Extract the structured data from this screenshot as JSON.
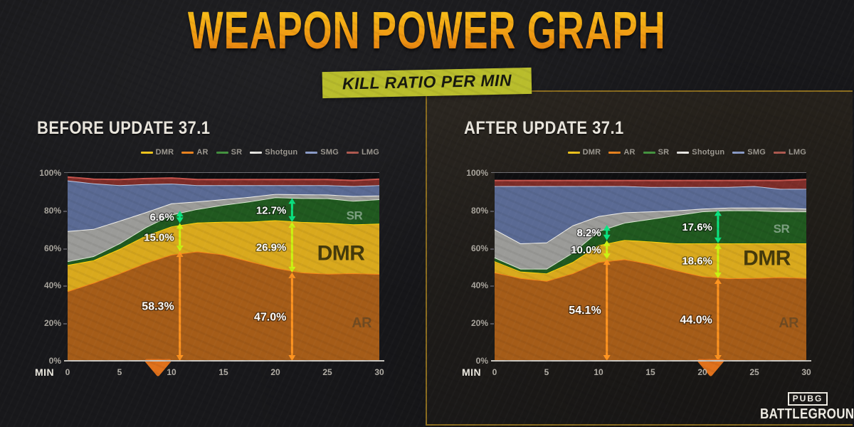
{
  "title": "WEAPON POWER GRAPH",
  "subtitle_badge": "KILL RATIO PER MIN",
  "brand": {
    "logo_top": "PUBG",
    "logo_bottom": "BATTLEGROUNDS"
  },
  "legend": [
    "DMR",
    "AR",
    "SR",
    "Shotgun",
    "SMG",
    "LMG"
  ],
  "colors": {
    "title_gradient_top": "#f9c41a",
    "title_gradient_bottom": "#e1770e",
    "badge_bg": "#b9bd2c",
    "badge_text": "#17180f",
    "frame_border": "#8a6c1f",
    "axis_marker": "#e0711b",
    "annotation": {
      "sr": "#0ae481",
      "dmr": "#cbf312",
      "ar": "#ff9420"
    },
    "series": {
      "AR": {
        "fill": "#a55c18",
        "edge": "#f5821a",
        "legend": "#e8821f"
      },
      "DMR": {
        "fill": "#d9a91d",
        "edge": "#ffd60a",
        "legend": "#eec31d"
      },
      "SR": {
        "fill": "#20591f",
        "edge": "#d9ead2",
        "legend": "#44923f"
      },
      "Shotgun": {
        "fill": "#9b9b98",
        "edge": "#f1f0ec",
        "legend": "#e8e7e3"
      },
      "SMG": {
        "fill": "#5a6a94",
        "edge": "#bac6e2",
        "legend": "#8b9cc8"
      },
      "LMG": {
        "fill": "#7e2d29",
        "edge": "#c9554e",
        "legend": "#b05a50"
      }
    }
  },
  "chart_data": [
    {
      "type": "area",
      "stacked": true,
      "title": "BEFORE UPDATE 37.1",
      "xlabel": "MIN",
      "unit": "%",
      "ylim": [
        0,
        100
      ],
      "x_ticks": [
        0,
        5,
        10,
        15,
        20,
        25,
        30
      ],
      "y_ticks": [
        "0%",
        "20%",
        "40%",
        "60%",
        "80%",
        "100%"
      ],
      "x": [
        0,
        2.5,
        5,
        7.5,
        10,
        12.5,
        15,
        17.5,
        20,
        22.5,
        25,
        27.5,
        30
      ],
      "series": [
        {
          "name": "AR",
          "values": [
            37,
            41.5,
            46.5,
            52,
            56.5,
            58.2,
            56.5,
            53,
            49.5,
            47.0,
            46.3,
            46.6,
            46.2
          ]
        },
        {
          "name": "DMR",
          "values": [
            14,
            12,
            13,
            14.5,
            15,
            15.4,
            17.5,
            21,
            25.3,
            26.9,
            27.2,
            26.0,
            26.8
          ]
        },
        {
          "name": "SR",
          "values": [
            2,
            2.2,
            3,
            4.5,
            6.3,
            7.2,
            9,
            10.8,
            12.2,
            12.7,
            13,
            12.5,
            13
          ]
        },
        {
          "name": "Shotgun",
          "values": [
            16,
            14.5,
            12,
            8,
            6,
            4,
            3,
            2.4,
            1.8,
            2,
            2,
            2.6,
            2
          ]
        },
        {
          "name": "SMG",
          "values": [
            27,
            24.2,
            19,
            15,
            10.5,
            8.7,
            7.5,
            6.3,
            4.7,
            4.9,
            5,
            5.3,
            5.5
          ]
        },
        {
          "name": "LMG",
          "values": [
            1.8,
            2.3,
            3,
            3,
            3,
            3,
            3,
            3,
            3,
            3,
            3,
            3,
            3.2
          ]
        }
      ],
      "annotations": [
        {
          "text": "6.6%",
          "kind": "sr",
          "x": 10.8,
          "y_from": 73.3,
          "y_to": 79.9
        },
        {
          "text": "15.0%",
          "kind": "dmr",
          "x": 10.8,
          "y_from": 58.3,
          "y_to": 73.3
        },
        {
          "text": "58.3%",
          "kind": "ar",
          "x": 10.8,
          "y_from": 0,
          "y_to": 58.3
        },
        {
          "text": "12.7%",
          "kind": "sr",
          "x": 21.6,
          "y_from": 73.9,
          "y_to": 86.6
        },
        {
          "text": "26.9%",
          "kind": "dmr",
          "x": 21.6,
          "y_from": 47.0,
          "y_to": 73.9
        },
        {
          "text": "47.0%",
          "kind": "ar",
          "x": 21.6,
          "y_from": 0,
          "y_to": 47.0
        }
      ],
      "area_labels": [
        {
          "text": "SR",
          "kind": "sr",
          "x": 27.6,
          "y": 77.5
        },
        {
          "text": "DMR",
          "kind": "dmr",
          "x": 26.3,
          "y": 57.5
        },
        {
          "text": "AR",
          "kind": "ar",
          "x": 28.3,
          "y": 20.5
        }
      ],
      "axis_marker_min": 8.7
    },
    {
      "type": "area",
      "stacked": true,
      "title": "AFTER UPDATE 37.1",
      "xlabel": "MIN",
      "unit": "%",
      "ylim": [
        0,
        100
      ],
      "x_ticks": [
        0,
        5,
        10,
        15,
        20,
        25,
        30
      ],
      "y_ticks": [
        "0%",
        "20%",
        "40%",
        "60%",
        "80%",
        "100%"
      ],
      "x": [
        0,
        2.5,
        5,
        7.5,
        10,
        12.5,
        15,
        17.5,
        20,
        22.5,
        25,
        27.5,
        30
      ],
      "series": [
        {
          "name": "AR",
          "values": [
            47,
            44,
            42.5,
            46.5,
            52.5,
            54.0,
            51.5,
            48,
            45,
            43.9,
            44.0,
            44.5,
            44.0
          ]
        },
        {
          "name": "DMR",
          "values": [
            6,
            3.5,
            4,
            6,
            9,
            10.3,
            12,
            14.5,
            17.5,
            18.6,
            18.5,
            18,
            18.5
          ]
        },
        {
          "name": "SR",
          "values": [
            2,
            1.5,
            2.5,
            5,
            7.5,
            9.2,
            12,
            15,
            17,
            17.6,
            17.5,
            17,
            17
          ]
        },
        {
          "name": "Shotgun",
          "values": [
            15,
            13.5,
            14,
            14.5,
            8,
            5.5,
            4,
            2.5,
            1.5,
            1.4,
            1.5,
            2,
            1.5
          ]
        },
        {
          "name": "SMG",
          "values": [
            23,
            30.5,
            30,
            21,
            16,
            14,
            13,
            12.5,
            11.5,
            11,
            11.5,
            10,
            10.5
          ]
        },
        {
          "name": "LMG",
          "values": [
            3,
            3,
            3,
            3,
            3,
            3,
            3.5,
            3.5,
            3.5,
            3.5,
            3,
            4.5,
            5
          ]
        }
      ],
      "annotations": [
        {
          "text": "8.2%",
          "kind": "sr",
          "x": 10.8,
          "y_from": 64.1,
          "y_to": 72.3
        },
        {
          "text": "10.0%",
          "kind": "dmr",
          "x": 10.8,
          "y_from": 54.1,
          "y_to": 64.1
        },
        {
          "text": "54.1%",
          "kind": "ar",
          "x": 10.8,
          "y_from": 0,
          "y_to": 54.1
        },
        {
          "text": "17.6%",
          "kind": "sr",
          "x": 21.5,
          "y_from": 62.6,
          "y_to": 80.2
        },
        {
          "text": "18.6%",
          "kind": "dmr",
          "x": 21.5,
          "y_from": 44.0,
          "y_to": 62.6
        },
        {
          "text": "44.0%",
          "kind": "ar",
          "x": 21.5,
          "y_from": 0,
          "y_to": 44.0
        }
      ],
      "area_labels": [
        {
          "text": "SR",
          "kind": "sr",
          "x": 27.6,
          "y": 70.5
        },
        {
          "text": "DMR",
          "kind": "dmr",
          "x": 26.2,
          "y": 55
        },
        {
          "text": "AR",
          "kind": "ar",
          "x": 28.3,
          "y": 20.5
        }
      ],
      "axis_marker_min": 20.8
    }
  ]
}
